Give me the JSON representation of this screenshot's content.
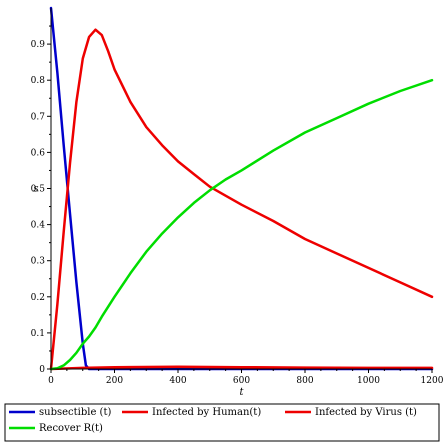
{
  "chart_data": {
    "type": "line",
    "xlabel": "t",
    "ylabel": "s",
    "xlim": [
      0,
      1200
    ],
    "ylim": [
      0,
      1
    ],
    "xticks": [
      0,
      200,
      400,
      600,
      800,
      1000,
      1200
    ],
    "xtick_labels": [
      "0",
      "200",
      "400",
      "600",
      "800",
      "1000",
      "1200"
    ],
    "yticks": [
      0,
      0.1,
      0.2,
      0.3,
      0.4,
      0.5,
      0.6,
      0.7,
      0.8,
      0.9
    ],
    "ytick_labels": [
      "0",
      "0.1",
      "0.2",
      "0.3",
      "0.4",
      "0.5",
      "0.6",
      "0.7",
      "0.8",
      "0.9"
    ],
    "grid": false,
    "legend_position": "bottom",
    "series": [
      {
        "name": "subsectible (t)",
        "color": "#0000cc",
        "x": [
          0,
          20,
          40,
          60,
          80,
          100,
          110,
          120,
          200,
          400,
          600,
          800,
          1000,
          1200
        ],
        "y": [
          1.0,
          0.82,
          0.62,
          0.43,
          0.24,
          0.07,
          0.01,
          0.0,
          0.0,
          0.0,
          0.0,
          0.0,
          0.0,
          0.0
        ]
      },
      {
        "name": "Infected by Human(t)",
        "color": "#ee0000",
        "x": [
          0,
          20,
          40,
          60,
          80,
          100,
          120,
          140,
          160,
          180,
          200,
          250,
          300,
          350,
          400,
          450,
          500,
          550,
          600,
          700,
          800,
          900,
          1000,
          1100,
          1200
        ],
        "y": [
          0.0,
          0.18,
          0.38,
          0.57,
          0.74,
          0.86,
          0.92,
          0.94,
          0.925,
          0.88,
          0.83,
          0.74,
          0.67,
          0.62,
          0.575,
          0.54,
          0.505,
          0.48,
          0.455,
          0.41,
          0.36,
          0.32,
          0.28,
          0.24,
          0.2
        ]
      },
      {
        "name": "Infected by Virus (t)",
        "color": "#ee0000",
        "x": [
          0,
          100,
          200,
          400,
          600,
          800,
          1000,
          1200
        ],
        "y": [
          0.0,
          0.003,
          0.005,
          0.006,
          0.005,
          0.004,
          0.003,
          0.003
        ]
      },
      {
        "name": "Recover R(t)",
        "color": "#00dd00",
        "x": [
          0,
          20,
          40,
          60,
          80,
          100,
          120,
          140,
          160,
          200,
          250,
          300,
          350,
          400,
          450,
          500,
          550,
          600,
          700,
          800,
          900,
          1000,
          1100,
          1200
        ],
        "y": [
          0.0,
          0.002,
          0.01,
          0.025,
          0.045,
          0.07,
          0.09,
          0.115,
          0.145,
          0.2,
          0.265,
          0.325,
          0.375,
          0.42,
          0.46,
          0.495,
          0.525,
          0.55,
          0.605,
          0.655,
          0.695,
          0.735,
          0.77,
          0.8
        ]
      }
    ]
  }
}
